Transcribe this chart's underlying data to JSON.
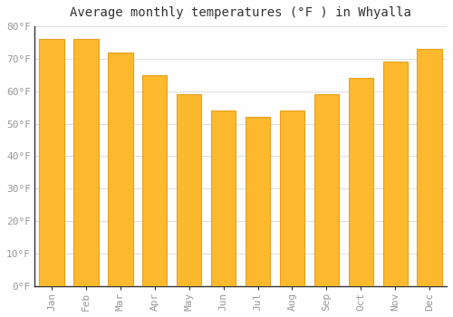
{
  "title": "Average monthly temperatures (°F ) in Whyalla",
  "months": [
    "Jan",
    "Feb",
    "Mar",
    "Apr",
    "May",
    "Jun",
    "Jul",
    "Aug",
    "Sep",
    "Oct",
    "Nov",
    "Dec"
  ],
  "values": [
    76,
    76,
    72,
    65,
    59,
    54,
    52,
    54,
    59,
    64,
    69,
    73
  ],
  "bar_color": "#FDB92E",
  "bar_edge_color": "#E8A020",
  "background_color": "#FEFEFE",
  "ylim": [
    0,
    80
  ],
  "yticks": [
    0,
    10,
    20,
    30,
    40,
    50,
    60,
    70,
    80
  ],
  "ytick_labels": [
    "0°F",
    "10°F",
    "20°F",
    "30°F",
    "40°F",
    "50°F",
    "60°F",
    "70°F",
    "80°F"
  ],
  "title_fontsize": 10,
  "tick_fontsize": 8,
  "grid_color": "#DDDDDD",
  "title_font_family": "monospace",
  "tick_color": "#999999"
}
